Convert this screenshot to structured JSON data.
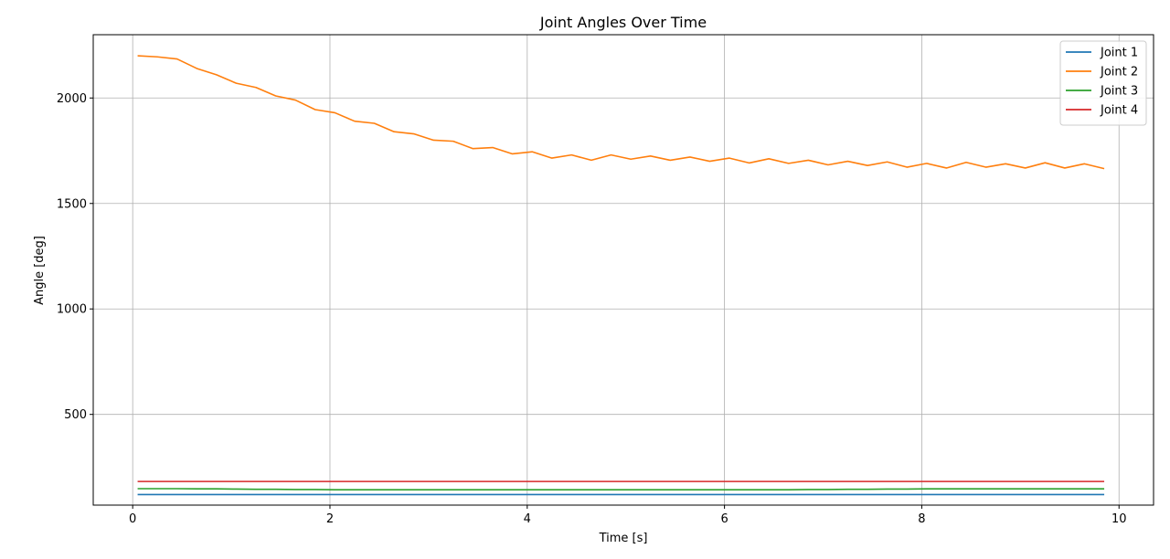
{
  "chart_data": {
    "type": "line",
    "title": "Joint Angles Over Time",
    "xlabel": "Time [s]",
    "ylabel": "Angle [deg]",
    "xlim": [
      -0.4,
      10.35
    ],
    "ylim": [
      70,
      2300
    ],
    "xticks": [
      0,
      2,
      4,
      6,
      8,
      10
    ],
    "xtick_labels": [
      "0",
      "2",
      "4",
      "6",
      "8",
      "10"
    ],
    "yticks": [
      500,
      1000,
      1500,
      2000
    ],
    "ytick_labels": [
      "500",
      "1000",
      "1500",
      "2000"
    ],
    "grid": true,
    "legend_position": "top-right",
    "x": [
      0.05,
      0.25,
      0.45,
      0.65,
      0.85,
      1.05,
      1.25,
      1.45,
      1.65,
      1.85,
      2.05,
      2.25,
      2.45,
      2.65,
      2.85,
      3.05,
      3.25,
      3.45,
      3.65,
      3.85,
      4.05,
      4.25,
      4.45,
      4.65,
      4.85,
      5.05,
      5.25,
      5.45,
      5.65,
      5.85,
      6.05,
      6.25,
      6.45,
      6.65,
      6.85,
      7.05,
      7.25,
      7.45,
      7.65,
      7.85,
      8.05,
      8.25,
      8.45,
      8.65,
      8.85,
      9.05,
      9.25,
      9.45,
      9.65,
      9.85
    ],
    "series": [
      {
        "name": "Joint 1",
        "color": "#1f77b4",
        "values": [
          120,
          120,
          120,
          120,
          120,
          120,
          120,
          120,
          120,
          120,
          120,
          120,
          120,
          120,
          120,
          120,
          120,
          120,
          120,
          120,
          120,
          120,
          120,
          120,
          120,
          120,
          120,
          120,
          120,
          120,
          120,
          120,
          120,
          120,
          120,
          120,
          120,
          120,
          120,
          120,
          120,
          120,
          120,
          120,
          120,
          120,
          120,
          120,
          120,
          120
        ]
      },
      {
        "name": "Joint 2",
        "color": "#ff7f0e",
        "values": [
          2200,
          2195,
          2185,
          2140,
          2110,
          2070,
          2050,
          2010,
          1990,
          1945,
          1930,
          1890,
          1880,
          1840,
          1830,
          1800,
          1795,
          1760,
          1765,
          1735,
          1745,
          1715,
          1730,
          1705,
          1730,
          1710,
          1725,
          1705,
          1720,
          1700,
          1715,
          1692,
          1712,
          1690,
          1705,
          1683,
          1700,
          1680,
          1697,
          1672,
          1690,
          1668,
          1695,
          1672,
          1688,
          1668,
          1693,
          1668,
          1688,
          1665
        ]
      },
      {
        "name": "Joint 3",
        "color": "#2ca02c",
        "values": [
          148,
          148,
          148,
          147,
          147,
          146,
          145,
          145,
          144,
          144,
          143,
          143,
          143,
          143,
          143,
          143,
          143,
          143,
          143,
          143,
          143,
          143,
          143,
          143,
          143,
          143,
          143,
          143,
          143,
          143,
          143,
          143,
          143,
          143,
          144,
          144,
          145,
          145,
          146,
          146,
          147,
          147,
          147,
          147,
          147,
          147,
          147,
          147,
          147,
          147
        ]
      },
      {
        "name": "Joint 4",
        "color": "#d62728",
        "values": [
          182,
          182,
          182,
          182,
          182,
          182,
          182,
          182,
          182,
          182,
          182,
          182,
          182,
          182,
          182,
          182,
          182,
          182,
          182,
          182,
          182,
          182,
          182,
          182,
          182,
          182,
          182,
          182,
          182,
          182,
          182,
          182,
          182,
          182,
          182,
          182,
          182,
          182,
          182,
          182,
          182,
          182,
          182,
          182,
          182,
          182,
          182,
          182,
          182,
          182
        ]
      }
    ]
  }
}
